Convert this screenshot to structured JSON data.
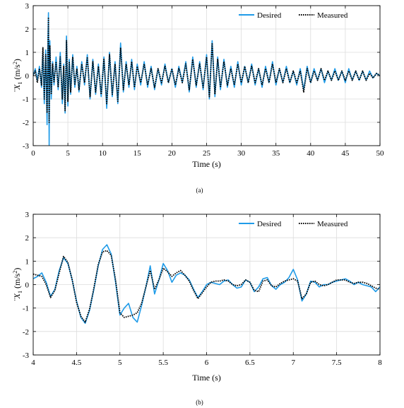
{
  "colors": {
    "desired": "#1f9be8",
    "measured": "#000000",
    "grid": "#dcdcdc",
    "axis": "#000000"
  },
  "chart_data": [
    {
      "type": "line",
      "caption": "(a)",
      "xlabel": "Time (s)",
      "ylabel_main": "¨X",
      "ylabel_sub": "1",
      "ylabel_units": "(m/s",
      "ylabel_sup": "2",
      "ylabel_close": ")",
      "xlim": [
        0,
        50
      ],
      "ylim": [
        -3,
        3
      ],
      "xticks": [
        0,
        5,
        10,
        15,
        20,
        25,
        30,
        35,
        40,
        45,
        50
      ],
      "xtick_labels": [
        "0",
        "5",
        "10",
        "15",
        "20",
        "25",
        "30",
        "35",
        "40",
        "45",
        "50"
      ],
      "yticks": [
        -3,
        -2,
        -1,
        0,
        1,
        2,
        3
      ],
      "ytick_labels": [
        "-3",
        "-2",
        "-1",
        "0",
        "1",
        "2",
        "3"
      ],
      "grid": true,
      "legend_position": "top-right",
      "series": [
        {
          "name": "Desired",
          "style": "solid",
          "x": [
            0,
            0.3,
            0.6,
            0.9,
            1.2,
            1.4,
            1.6,
            1.8,
            2.0,
            2.1,
            2.2,
            2.3,
            2.4,
            2.6,
            2.8,
            3.0,
            3.3,
            3.6,
            3.9,
            4.2,
            4.4,
            4.6,
            4.8,
            5.0,
            5.2,
            5.4,
            5.7,
            6.0,
            6.3,
            6.6,
            7.0,
            7.4,
            7.8,
            8.2,
            8.6,
            9.0,
            9.4,
            9.8,
            10.2,
            10.6,
            11.0,
            11.4,
            11.8,
            12.2,
            12.6,
            13.0,
            13.4,
            13.8,
            14.2,
            14.6,
            15.0,
            15.5,
            16.0,
            16.5,
            17.0,
            17.5,
            18.0,
            18.5,
            19.0,
            19.5,
            20.0,
            20.5,
            21.0,
            21.5,
            22.0,
            22.5,
            23.0,
            23.5,
            24.0,
            24.5,
            25.0,
            25.4,
            25.8,
            26.2,
            26.6,
            27.0,
            27.5,
            28.0,
            28.5,
            29.0,
            29.5,
            30.0,
            30.5,
            31.0,
            31.5,
            32.0,
            32.5,
            33.0,
            33.5,
            34.0,
            34.5,
            35.0,
            35.5,
            36.0,
            36.5,
            37.0,
            37.5,
            38.0,
            38.5,
            39.0,
            39.5,
            40.0,
            40.5,
            41.0,
            41.5,
            42.0,
            42.5,
            43.0,
            43.5,
            44.0,
            44.5,
            45.0,
            45.5,
            46.0,
            46.5,
            47.0,
            47.5,
            48.0,
            48.5,
            49.0,
            49.5,
            50.0
          ],
          "y": [
            0,
            0.3,
            -0.2,
            0.4,
            -0.5,
            1.0,
            -1.2,
            1.1,
            -2.1,
            0.9,
            2.7,
            -3.0,
            1.5,
            -1.0,
            0.6,
            -0.4,
            0.8,
            -0.6,
            1.0,
            -1.2,
            0.5,
            -1.6,
            1.7,
            -1.3,
            0.7,
            -0.8,
            0.9,
            -0.5,
            0.4,
            -0.7,
            0.6,
            -0.4,
            0.9,
            -1.0,
            0.7,
            -0.8,
            0.5,
            -0.9,
            0.8,
            -1.4,
            1.0,
            -0.9,
            0.6,
            -1.2,
            1.4,
            -0.7,
            0.6,
            -0.5,
            0.7,
            -0.6,
            0.5,
            -0.4,
            0.6,
            -0.5,
            0.4,
            -0.6,
            0.3,
            -0.4,
            0.5,
            -0.3,
            0.3,
            -0.5,
            0.4,
            -0.3,
            0.6,
            -0.7,
            0.8,
            -0.5,
            0.6,
            -0.6,
            0.9,
            -1.0,
            1.5,
            -0.9,
            0.8,
            -0.6,
            0.7,
            -0.5,
            0.4,
            -0.5,
            0.6,
            -0.4,
            0.4,
            -0.3,
            0.5,
            -0.4,
            0.3,
            -0.5,
            0.4,
            -0.3,
            0.6,
            -0.4,
            0.3,
            -0.3,
            0.4,
            -0.3,
            0.2,
            -0.4,
            0.3,
            -0.6,
            0.4,
            -0.3,
            0.3,
            -0.2,
            0.3,
            -0.3,
            0.2,
            -0.2,
            0.3,
            -0.2,
            0.2,
            -0.3,
            0.3,
            -0.2,
            0.2,
            -0.2,
            0.2,
            -0.2,
            0.2,
            -0.1,
            0.1,
            0
          ]
        },
        {
          "name": "Measured",
          "style": "dotted",
          "x": [
            0,
            0.3,
            0.6,
            0.9,
            1.2,
            1.4,
            1.6,
            1.8,
            2.0,
            2.1,
            2.2,
            2.3,
            2.4,
            2.6,
            2.8,
            3.0,
            3.3,
            3.6,
            3.9,
            4.2,
            4.4,
            4.6,
            4.8,
            5.0,
            5.2,
            5.4,
            5.7,
            6.0,
            6.3,
            6.6,
            7.0,
            7.4,
            7.8,
            8.2,
            8.6,
            9.0,
            9.4,
            9.8,
            10.2,
            10.6,
            11.0,
            11.4,
            11.8,
            12.2,
            12.6,
            13.0,
            13.4,
            13.8,
            14.2,
            14.6,
            15.0,
            15.5,
            16.0,
            16.5,
            17.0,
            17.5,
            18.0,
            18.5,
            19.0,
            19.5,
            20.0,
            20.5,
            21.0,
            21.5,
            22.0,
            22.5,
            23.0,
            23.5,
            24.0,
            24.5,
            25.0,
            25.4,
            25.8,
            26.2,
            26.6,
            27.0,
            27.5,
            28.0,
            28.5,
            29.0,
            29.5,
            30.0,
            30.5,
            31.0,
            31.5,
            32.0,
            32.5,
            33.0,
            33.5,
            34.0,
            34.5,
            35.0,
            35.5,
            36.0,
            36.5,
            37.0,
            37.5,
            38.0,
            38.5,
            39.0,
            39.5,
            40.0,
            40.5,
            41.0,
            41.5,
            42.0,
            42.5,
            43.0,
            43.5,
            44.0,
            44.5,
            45.0,
            45.5,
            46.0,
            46.5,
            47.0,
            47.5,
            48.0,
            48.5,
            49.0,
            49.5,
            50.0
          ],
          "y": [
            0,
            0.2,
            -0.3,
            0.3,
            -0.4,
            1.2,
            -1.0,
            0.9,
            -1.6,
            0.8,
            2.5,
            -2.0,
            1.3,
            -0.8,
            0.5,
            -0.3,
            0.6,
            -0.5,
            0.8,
            -1.0,
            0.4,
            -1.5,
            1.5,
            -1.1,
            0.6,
            -0.7,
            0.8,
            -0.4,
            0.3,
            -0.6,
            0.5,
            -0.3,
            0.8,
            -0.9,
            0.6,
            -0.7,
            0.4,
            -0.8,
            0.7,
            -1.2,
            0.9,
            -0.8,
            0.5,
            -1.1,
            1.2,
            -0.6,
            0.5,
            -0.4,
            0.6,
            -0.5,
            0.4,
            -0.3,
            0.5,
            -0.4,
            0.3,
            -0.5,
            0.3,
            -0.3,
            0.4,
            -0.3,
            0.3,
            -0.4,
            0.3,
            -0.3,
            0.5,
            -0.6,
            0.7,
            -0.4,
            0.5,
            -0.5,
            0.8,
            -0.9,
            1.4,
            -0.8,
            0.7,
            -0.5,
            0.6,
            -0.4,
            0.3,
            -0.4,
            0.5,
            -0.3,
            0.4,
            -0.3,
            0.4,
            -0.3,
            0.3,
            -0.4,
            0.3,
            -0.3,
            0.5,
            -0.3,
            0.3,
            -0.3,
            0.3,
            -0.3,
            0.2,
            -0.3,
            0.2,
            -0.7,
            0.3,
            -0.3,
            0.2,
            -0.2,
            0.3,
            -0.2,
            0.2,
            -0.2,
            0.2,
            -0.2,
            0.2,
            -0.2,
            0.2,
            -0.2,
            0.2,
            -0.2,
            0.2,
            -0.2,
            0.1,
            -0.1,
            0.1,
            0
          ]
        }
      ]
    },
    {
      "type": "line",
      "caption": "(b)",
      "xlabel": "Time (s)",
      "ylabel_main": "¨X",
      "ylabel_sub": "1",
      "ylabel_units": "(m/s",
      "ylabel_sup": "2",
      "ylabel_close": ")",
      "xlim": [
        4,
        8
      ],
      "ylim": [
        -3,
        3
      ],
      "xticks": [
        4,
        4.5,
        5,
        5.5,
        6,
        6.5,
        7,
        7.5,
        8
      ],
      "xtick_labels": [
        "4",
        "4.5",
        "5",
        "5.5",
        "6",
        "6.5",
        "7",
        "7.5",
        "8"
      ],
      "yticks": [
        -3,
        -2,
        -1,
        0,
        1,
        2,
        3
      ],
      "ytick_labels": [
        "-3",
        "-2",
        "-1",
        "0",
        "1",
        "2",
        "3"
      ],
      "grid": true,
      "legend_position": "top-right",
      "series": [
        {
          "name": "Desired",
          "style": "solid",
          "x": [
            4.0,
            4.05,
            4.1,
            4.15,
            4.2,
            4.25,
            4.3,
            4.35,
            4.4,
            4.45,
            4.5,
            4.55,
            4.6,
            4.65,
            4.7,
            4.75,
            4.8,
            4.85,
            4.9,
            4.95,
            5.0,
            5.05,
            5.1,
            5.15,
            5.2,
            5.25,
            5.3,
            5.35,
            5.4,
            5.45,
            5.5,
            5.55,
            5.6,
            5.65,
            5.7,
            5.75,
            5.8,
            5.85,
            5.9,
            5.95,
            6.0,
            6.05,
            6.1,
            6.15,
            6.2,
            6.25,
            6.3,
            6.35,
            6.4,
            6.45,
            6.5,
            6.55,
            6.6,
            6.65,
            6.7,
            6.75,
            6.8,
            6.85,
            6.9,
            6.95,
            7.0,
            7.05,
            7.1,
            7.15,
            7.2,
            7.25,
            7.3,
            7.35,
            7.4,
            7.45,
            7.5,
            7.55,
            7.6,
            7.65,
            7.7,
            7.75,
            7.8,
            7.85,
            7.9,
            7.95,
            8.0
          ],
          "y": [
            0.25,
            0.35,
            0.5,
            0.1,
            -0.5,
            -0.2,
            0.6,
            1.15,
            0.9,
            0.2,
            -0.7,
            -1.4,
            -1.65,
            -1.1,
            -0.2,
            0.8,
            1.5,
            1.7,
            1.3,
            0.1,
            -1.3,
            -1.0,
            -0.8,
            -1.4,
            -1.6,
            -0.9,
            -0.1,
            0.8,
            -0.4,
            0.2,
            0.9,
            0.6,
            0.1,
            0.4,
            0.5,
            0.4,
            0.2,
            -0.2,
            -0.55,
            -0.3,
            0.0,
            0.1,
            0.05,
            0.0,
            0.15,
            0.2,
            0.0,
            -0.15,
            -0.1,
            0.2,
            0.1,
            -0.3,
            -0.1,
            0.25,
            0.3,
            -0.05,
            -0.2,
            0.0,
            0.1,
            0.3,
            0.65,
            0.2,
            -0.7,
            -0.4,
            0.15,
            0.1,
            -0.1,
            0.0,
            0.0,
            0.1,
            0.15,
            0.2,
            0.25,
            0.15,
            0.0,
            0.1,
            0.0,
            -0.05,
            -0.1,
            -0.3,
            -0.1
          ]
        },
        {
          "name": "Measured",
          "style": "dotted",
          "x": [
            4.0,
            4.05,
            4.1,
            4.15,
            4.2,
            4.25,
            4.3,
            4.35,
            4.4,
            4.45,
            4.5,
            4.55,
            4.6,
            4.65,
            4.7,
            4.75,
            4.8,
            4.85,
            4.9,
            4.95,
            5.0,
            5.05,
            5.1,
            5.15,
            5.2,
            5.25,
            5.3,
            5.35,
            5.4,
            5.45,
            5.5,
            5.55,
            5.6,
            5.65,
            5.7,
            5.75,
            5.8,
            5.85,
            5.9,
            5.95,
            6.0,
            6.05,
            6.1,
            6.15,
            6.2,
            6.25,
            6.3,
            6.35,
            6.4,
            6.45,
            6.5,
            6.55,
            6.6,
            6.65,
            6.7,
            6.75,
            6.8,
            6.85,
            6.9,
            6.95,
            7.0,
            7.05,
            7.1,
            7.15,
            7.2,
            7.25,
            7.3,
            7.35,
            7.4,
            7.45,
            7.5,
            7.55,
            7.6,
            7.65,
            7.7,
            7.75,
            7.8,
            7.85,
            7.9,
            7.95,
            8.0
          ],
          "y": [
            0.45,
            0.4,
            0.35,
            0.0,
            -0.55,
            -0.25,
            0.5,
            1.2,
            0.95,
            0.2,
            -0.75,
            -1.35,
            -1.6,
            -1.05,
            -0.15,
            0.85,
            1.4,
            1.45,
            1.25,
            0.2,
            -1.2,
            -1.4,
            -1.35,
            -1.3,
            -1.2,
            -0.8,
            -0.1,
            0.6,
            -0.2,
            0.2,
            0.7,
            0.55,
            0.35,
            0.5,
            0.6,
            0.4,
            0.15,
            -0.25,
            -0.6,
            -0.35,
            -0.1,
            0.1,
            0.15,
            0.15,
            0.2,
            0.15,
            0.0,
            -0.05,
            0.0,
            0.2,
            0.1,
            -0.25,
            -0.3,
            0.15,
            0.2,
            -0.05,
            -0.1,
            0.05,
            0.15,
            0.2,
            0.25,
            0.15,
            -0.6,
            -0.4,
            0.1,
            0.15,
            0.0,
            -0.05,
            0.0,
            0.1,
            0.2,
            0.2,
            0.2,
            0.1,
            0.05,
            0.1,
            0.1,
            0.05,
            -0.05,
            -0.15,
            -0.2
          ]
        }
      ]
    }
  ]
}
